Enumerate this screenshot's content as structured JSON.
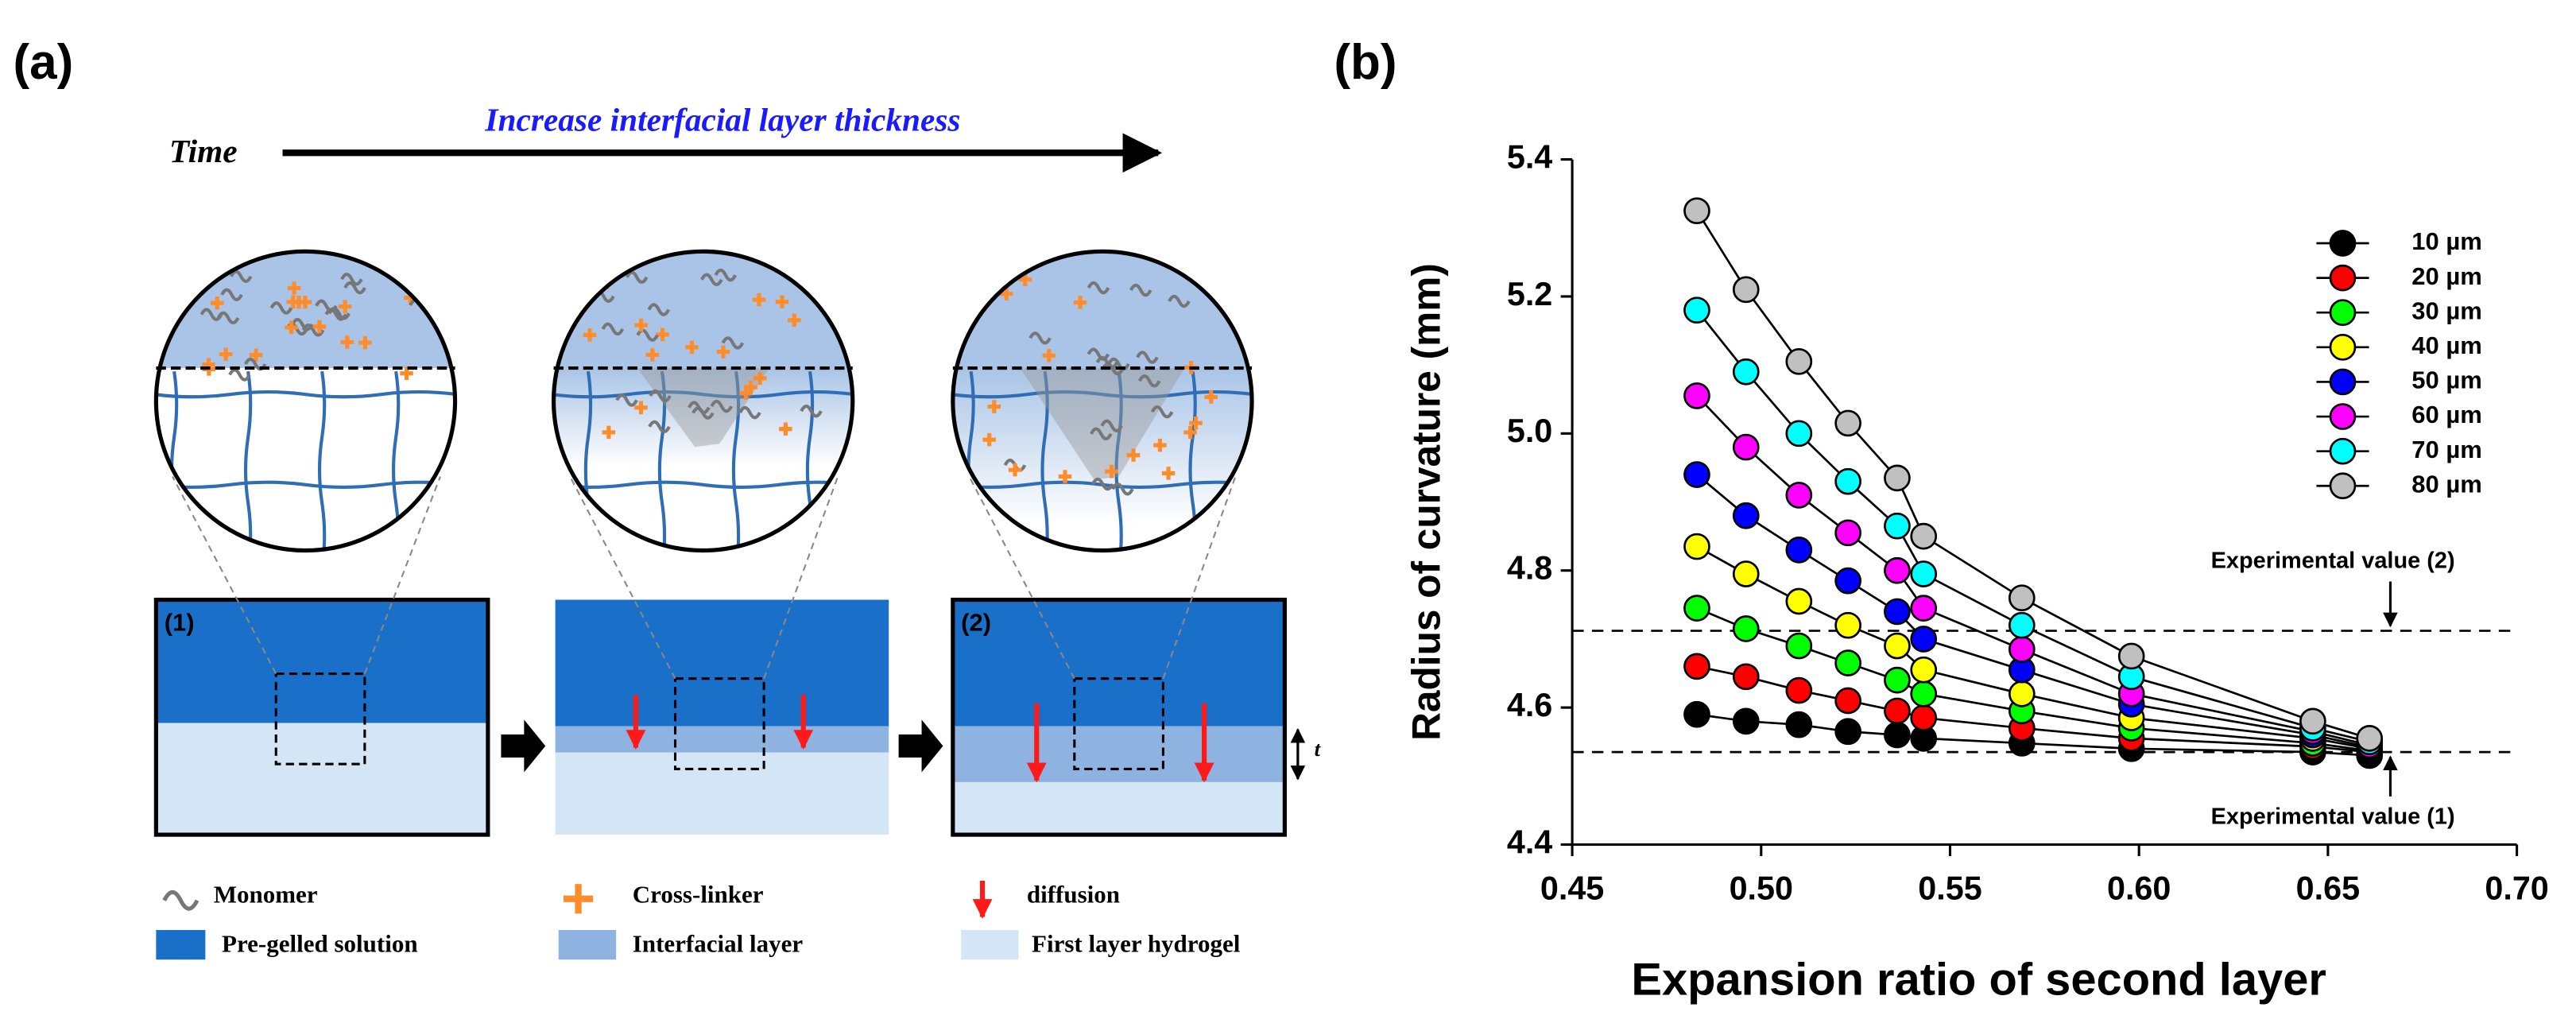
{
  "panel_a": {
    "label": "(a)",
    "time": "Time",
    "title": "Increase interfacial layer thickness",
    "stage_labels": [
      "(1)",
      "(2)"
    ],
    "thickness_label": "t",
    "legend": [
      "Monomer",
      "Cross-linker",
      "diffusion",
      "Pre-gelled solution",
      "Interfacial layer",
      "First layer hydrogel"
    ]
  },
  "panel_b_label": "(b)",
  "chart_data": {
    "type": "line",
    "xlabel": "Expansion ratio of second layer",
    "ylabel": "Radius of curvature (mm)",
    "x": [
      0.483,
      0.496,
      0.51,
      0.523,
      0.536,
      0.543,
      0.569,
      0.598,
      0.646,
      0.661
    ],
    "series": [
      {
        "name": "10 µm",
        "color": "#000000",
        "values": [
          4.59,
          4.58,
          4.575,
          4.565,
          4.56,
          4.555,
          4.548,
          4.54,
          4.535,
          4.53
        ]
      },
      {
        "name": "20 µm",
        "color": "#ff0000",
        "values": [
          4.66,
          4.645,
          4.625,
          4.61,
          4.595,
          4.585,
          4.57,
          4.555,
          4.543,
          4.535
        ]
      },
      {
        "name": "30 µm",
        "color": "#00ff00",
        "values": [
          4.745,
          4.715,
          4.69,
          4.665,
          4.64,
          4.62,
          4.595,
          4.57,
          4.548,
          4.537
        ]
      },
      {
        "name": "40 µm",
        "color": "#ffff00",
        "values": [
          4.835,
          4.795,
          4.755,
          4.72,
          4.69,
          4.655,
          4.62,
          4.585,
          4.555,
          4.54
        ]
      },
      {
        "name": "50 µm",
        "color": "#0000ff",
        "values": [
          4.94,
          4.88,
          4.83,
          4.785,
          4.74,
          4.7,
          4.655,
          4.605,
          4.56,
          4.542
        ]
      },
      {
        "name": "60 µm",
        "color": "#ff00ff",
        "values": [
          5.055,
          4.98,
          4.91,
          4.855,
          4.8,
          4.745,
          4.685,
          4.62,
          4.565,
          4.545
        ]
      },
      {
        "name": "70 µm",
        "color": "#00ffff",
        "values": [
          5.18,
          5.09,
          5.0,
          4.93,
          4.865,
          4.795,
          4.72,
          4.645,
          4.57,
          4.55
        ]
      },
      {
        "name": "80 µm",
        "color": "#c0c0c0",
        "values": [
          5.325,
          5.21,
          5.105,
          5.015,
          4.935,
          4.85,
          4.76,
          4.675,
          4.58,
          4.555
        ]
      }
    ],
    "xlim": [
      0.45,
      0.7
    ],
    "xticks": [
      0.45,
      {
        "value": 0.5,
        "label": "0.50"
      },
      0.55,
      {
        "value": 0.6,
        "label": "0.60"
      },
      0.65,
      {
        "value": 0.7,
        "label": "0.70"
      }
    ],
    "ylim": [
      4.4,
      5.4
    ],
    "yticks": [
      4.4,
      4.6,
      4.8,
      {
        "value": 5,
        "label": "5.0"
      },
      5.2,
      5.4
    ],
    "reference_lines": [
      {
        "value": 4.712,
        "label": "Experimental value (2)"
      },
      {
        "value": 4.535,
        "label": "Experimental value (1)"
      }
    ],
    "legend": "upper right",
    "grid": false
  }
}
